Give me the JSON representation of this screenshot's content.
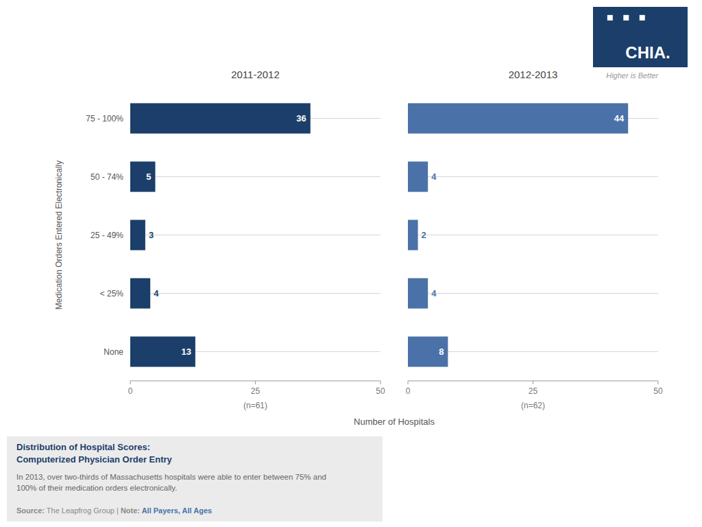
{
  "chart_data": [
    {
      "type": "bar",
      "orientation": "horizontal",
      "title": "2011-2012",
      "categories": [
        "75 - 100%",
        "50 - 74%",
        "25 - 49%",
        "< 25%",
        "None"
      ],
      "values": [
        36,
        5,
        3,
        4,
        13
      ],
      "color": "#1b3f6a",
      "xlim": [
        0,
        50
      ],
      "xticks": [
        0,
        25,
        50
      ],
      "grid": true,
      "data_labels": true,
      "xlabel": "Number of Hospitals",
      "ylabel": "Medication Orders Entered Electronically",
      "annotations": [
        "(n=61)"
      ]
    },
    {
      "type": "bar",
      "orientation": "horizontal",
      "title": "2012-2013",
      "categories": [
        "75 - 100%",
        "50 - 74%",
        "25 - 49%",
        "< 25%",
        "None"
      ],
      "values": [
        44,
        4,
        2,
        4,
        8
      ],
      "color": "#4a72a8",
      "xlim": [
        0,
        50
      ],
      "xticks": [
        0,
        25,
        50
      ],
      "grid": true,
      "data_labels": true,
      "tick_labels": "x",
      "annotations": [
        "(n=62)",
        "Higher is Better"
      ]
    }
  ],
  "logo": "CHIA.",
  "footer": {
    "title": [
      "Distribution of Hospital Scores:",
      "Computerized Physician Order Entry"
    ],
    "body": [
      "In 2013, over two-thirds of Massachusetts hospitals were able to enter between 75% and",
      "100% of their medication orders electronically."
    ],
    "source": [
      "Source:",
      " The Leapfrog Group | ",
      "Note:",
      " All Payers, All Ages"
    ]
  }
}
